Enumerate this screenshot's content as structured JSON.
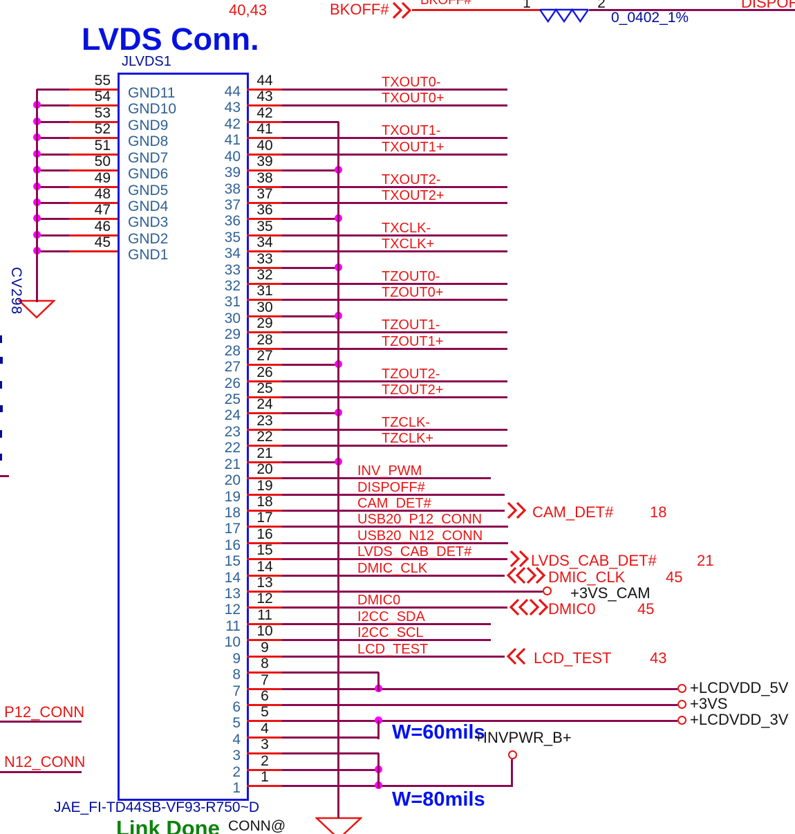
{
  "colors": {
    "wire_maroon": "#8b0a50",
    "wire_red": "#e91515",
    "junction_magenta": "#ff00ff",
    "symbol_blue": "#1414e0",
    "label_navy": "#000d99",
    "pin_text_blue": "#2e6096",
    "title_blue": "#0512dd",
    "annotation_blue": "#0011f2",
    "link_done_green": "#0c830c"
  },
  "title": "LVDS Conn.",
  "top_link": {
    "pages": "40,43",
    "from_net": "BKOFF#",
    "net_label": "BKOFF#",
    "pin1": "1",
    "pin2": "2",
    "value": "0_0402_1%",
    "to_net": "DISPOFF#"
  },
  "connector": {
    "refdes": "JLVDS1",
    "part_number": "JAE_FI-TD44SB-VF93-R750~D",
    "left_pins": [
      {
        "num": "55",
        "label": "GND11"
      },
      {
        "num": "54",
        "label": "GND10"
      },
      {
        "num": "53",
        "label": "GND9"
      },
      {
        "num": "52",
        "label": "GND8"
      },
      {
        "num": "51",
        "label": "GND7"
      },
      {
        "num": "50",
        "label": "GND6"
      },
      {
        "num": "49",
        "label": "GND5"
      },
      {
        "num": "48",
        "label": "GND4"
      },
      {
        "num": "47",
        "label": "GND3"
      },
      {
        "num": "46",
        "label": "GND2"
      },
      {
        "num": "45",
        "label": "GND1"
      }
    ],
    "right_pins": [
      {
        "num": "44",
        "net": "TXOUT0-"
      },
      {
        "num": "43",
        "net": "TXOUT0+"
      },
      {
        "num": "42"
      },
      {
        "num": "41",
        "net": "TXOUT1-"
      },
      {
        "num": "40",
        "net": "TXOUT1+"
      },
      {
        "num": "39"
      },
      {
        "num": "38",
        "net": "TXOUT2-"
      },
      {
        "num": "37",
        "net": "TXOUT2+"
      },
      {
        "num": "36"
      },
      {
        "num": "35",
        "net": "TXCLK-"
      },
      {
        "num": "34",
        "net": "TXCLK+"
      },
      {
        "num": "33"
      },
      {
        "num": "32",
        "net": "TZOUT0-"
      },
      {
        "num": "31",
        "net": "TZOUT0+"
      },
      {
        "num": "30"
      },
      {
        "num": "29",
        "net": "TZOUT1-"
      },
      {
        "num": "28",
        "net": "TZOUT1+"
      },
      {
        "num": "27"
      },
      {
        "num": "26",
        "net": "TZOUT2-"
      },
      {
        "num": "25",
        "net": "TZOUT2+"
      },
      {
        "num": "24"
      },
      {
        "num": "23",
        "net": "TZCLK-"
      },
      {
        "num": "22",
        "net": "TZCLK+"
      },
      {
        "num": "21"
      },
      {
        "num": "20",
        "net": "INV_PWM"
      },
      {
        "num": "19",
        "net": "DISPOFF#"
      },
      {
        "num": "18",
        "net": "CAM_DET#",
        "ext": "CAM_DET#",
        "page": "18"
      },
      {
        "num": "17",
        "net": "USB20_P12_CONN"
      },
      {
        "num": "16",
        "net": "USB20_N12_CONN"
      },
      {
        "num": "15",
        "net": "LVDS_CAB_DET#",
        "ext": "LVDS_CAB_DET#",
        "page": "21"
      },
      {
        "num": "14",
        "net": "DMIC_CLK",
        "ext": "DMIC_CLK",
        "page": "45"
      },
      {
        "num": "13",
        "power": "+3VS_CAM"
      },
      {
        "num": "12",
        "net": "DMIC0",
        "ext": "DMIC0",
        "page": "45"
      },
      {
        "num": "11",
        "net": "I2CC_SDA"
      },
      {
        "num": "10",
        "net": "I2CC_SCL"
      },
      {
        "num": "9",
        "net": "LCD_TEST",
        "ext": "LCD_TEST",
        "page": "43"
      },
      {
        "num": "8"
      },
      {
        "num": "7",
        "power": "+LCDVDD_5V"
      },
      {
        "num": "6",
        "power": "+3VS"
      },
      {
        "num": "5",
        "power": "+LCDVDD_3V"
      },
      {
        "num": "4"
      },
      {
        "num": "3"
      },
      {
        "num": "2"
      },
      {
        "num": "1",
        "power": "+INVPWR_B+"
      }
    ]
  },
  "left_edge": {
    "labels": [
      "P12_CONN",
      "N12_CONN"
    ],
    "cap_ref": "CV298"
  },
  "annotations": {
    "w60": "W=60mils",
    "w80": "W=80mils",
    "link_done": "Link Done",
    "conn_at": "CONN@"
  }
}
